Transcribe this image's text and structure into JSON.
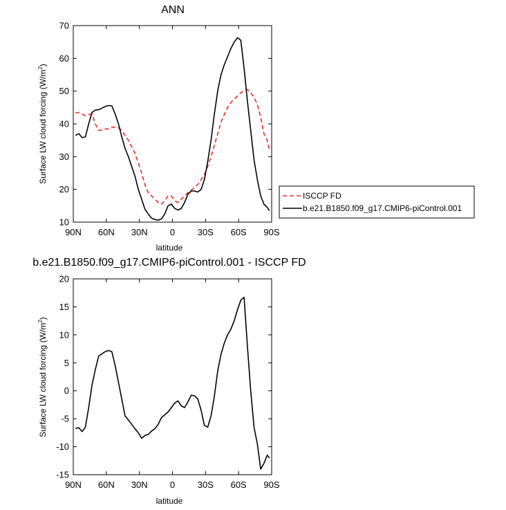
{
  "chart_data": [
    {
      "type": "line",
      "title": "ANN",
      "xlabel": "latitude",
      "ylabel": "Surface LW cloud forcing (W/m",
      "ylabel_sup": "2",
      "ylabel_close": ")",
      "xlim": [
        90,
        -90
      ],
      "ylim": [
        10,
        70
      ],
      "xticks": [
        90,
        60,
        30,
        0,
        -30,
        -60,
        -90
      ],
      "xtick_labels": [
        "90N",
        "60N",
        "30N",
        "0",
        "30S",
        "60S",
        "90S"
      ],
      "yticks": [
        10,
        20,
        30,
        40,
        50,
        60,
        70
      ],
      "ytick_labels": [
        "10",
        "20",
        "30",
        "40",
        "50",
        "60",
        "70"
      ],
      "legend_position": "right",
      "series": [
        {
          "name": "ISCCP FD",
          "color": "#e8281e",
          "dash": true,
          "x": [
            88,
            85,
            82,
            79,
            76,
            73,
            70,
            67,
            64,
            61,
            58,
            55,
            52,
            49,
            46,
            43,
            40,
            37,
            34,
            31,
            28,
            25,
            22,
            19,
            16,
            13,
            10,
            7,
            4,
            1,
            -2,
            -5,
            -8,
            -11,
            -14,
            -17,
            -20,
            -23,
            -26,
            -29,
            -32,
            -35,
            -38,
            -41,
            -44,
            -47,
            -50,
            -53,
            -56,
            -59,
            -62,
            -65,
            -68,
            -71,
            -74,
            -77,
            -80,
            -83,
            -86,
            -88
          ],
          "y": [
            43.3,
            43.5,
            43,
            42.5,
            42.8,
            43,
            40,
            38,
            38.2,
            38.4,
            38.5,
            39,
            39,
            38.8,
            38,
            36.5,
            35,
            33,
            31,
            28,
            25,
            21.5,
            19,
            18,
            17,
            16,
            15.5,
            16.5,
            18,
            18,
            16.5,
            16,
            17,
            18,
            19,
            19.8,
            20.5,
            21.5,
            23,
            24.5,
            27,
            30,
            33.5,
            37,
            40.5,
            42.8,
            45,
            46.5,
            47.5,
            48.5,
            49.5,
            50.2,
            50.5,
            49.5,
            48,
            46,
            42,
            37,
            35,
            32
          ]
        },
        {
          "name": "b.e21.B1850.f09_g17.CMIP6-piControl.001",
          "color": "#000000",
          "dash": false,
          "x": [
            88,
            85,
            82,
            79,
            76,
            73,
            70,
            67,
            64,
            61,
            58,
            55,
            52,
            49,
            46,
            43,
            40,
            37,
            34,
            31,
            28,
            25,
            22,
            19,
            16,
            13,
            10,
            7,
            4,
            1,
            -2,
            -5,
            -8,
            -11,
            -14,
            -17,
            -20,
            -23,
            -26,
            -29,
            -32,
            -35,
            -38,
            -41,
            -44,
            -47,
            -50,
            -53,
            -56,
            -59,
            -62,
            -65,
            -68,
            -71,
            -74,
            -77,
            -80,
            -83,
            -86,
            -88
          ],
          "y": [
            36.5,
            37,
            35.8,
            36,
            40,
            43.5,
            44.2,
            44.3,
            44.8,
            45.3,
            45.6,
            45.5,
            43,
            40,
            36,
            32.5,
            30,
            27,
            24,
            20,
            17,
            14,
            12.5,
            11.2,
            10.8,
            10.6,
            11,
            12.5,
            15,
            15.5,
            14.2,
            13.7,
            14.2,
            16,
            18.5,
            19.5,
            19.5,
            19.2,
            20,
            23,
            28.5,
            35,
            43,
            50,
            55,
            58,
            60.5,
            63,
            65,
            66.3,
            65.5,
            57,
            47,
            38,
            29,
            23,
            18,
            15.5,
            14.5,
            13.5
          ]
        }
      ]
    },
    {
      "type": "line",
      "title": "b.e21.B1850.f09_g17.CMIP6-piControl.001 - ISCCP FD",
      "xlabel": "latitude",
      "ylabel": "Surface LW cloud forcing (W/m",
      "ylabel_sup": "2",
      "ylabel_close": ")",
      "xlim": [
        90,
        -90
      ],
      "ylim": [
        -15,
        20
      ],
      "xticks": [
        90,
        60,
        30,
        0,
        -30,
        -60,
        -90
      ],
      "xtick_labels": [
        "90N",
        "60N",
        "30N",
        "0",
        "30S",
        "60S",
        "90S"
      ],
      "yticks": [
        -15,
        -10,
        -5,
        0,
        5,
        10,
        15,
        20
      ],
      "ytick_labels": [
        "-15",
        "-10",
        "-5",
        "0",
        "5",
        "10",
        "15",
        "20"
      ],
      "series": [
        {
          "name": "",
          "color": "#000000",
          "dash": false,
          "x": [
            88,
            85,
            82,
            79,
            76,
            73,
            70,
            67,
            64,
            61,
            58,
            55,
            52,
            49,
            46,
            43,
            40,
            37,
            34,
            31,
            28,
            25,
            22,
            19,
            16,
            13,
            10,
            7,
            4,
            1,
            -2,
            -5,
            -8,
            -11,
            -14,
            -17,
            -20,
            -23,
            -26,
            -29,
            -32,
            -35,
            -38,
            -41,
            -44,
            -47,
            -50,
            -53,
            -56,
            -59,
            -62,
            -65,
            -68,
            -71,
            -74,
            -77,
            -80,
            -83,
            -86,
            -88
          ],
          "y": [
            -6.7,
            -6.6,
            -7.3,
            -6.5,
            -3,
            1,
            3.8,
            6.2,
            6.6,
            7,
            7.2,
            7,
            4.5,
            1.5,
            -1.5,
            -4.5,
            -5.2,
            -6,
            -6.8,
            -7.5,
            -8.5,
            -8,
            -7.8,
            -7.2,
            -6.8,
            -6,
            -4.8,
            -4.3,
            -3.8,
            -3,
            -2.2,
            -1.8,
            -2.7,
            -3,
            -2,
            -0.8,
            -0.9,
            -1.5,
            -3.5,
            -6.2,
            -6.5,
            -4.5,
            -1,
            3.5,
            6.5,
            8.5,
            10,
            11,
            12.5,
            14.5,
            16.2,
            16.7,
            8,
            0,
            -6.5,
            -9.5,
            -14,
            -13,
            -11.5,
            -12
          ]
        }
      ]
    }
  ]
}
